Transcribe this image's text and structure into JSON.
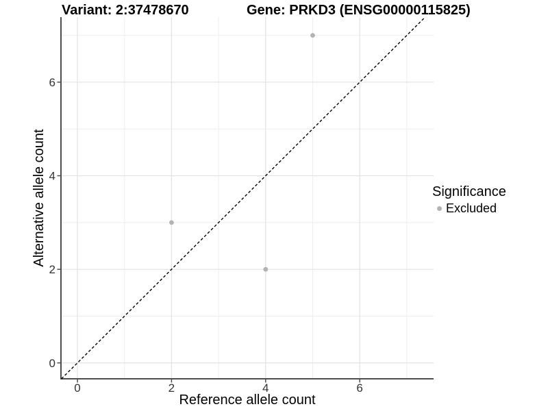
{
  "titles": {
    "variant": "Variant: 2:37478670",
    "gene": "Gene: PRKD3 (ENSG00000115825)"
  },
  "chart_data": {
    "type": "scatter",
    "title_left": "Variant: 2:37478670",
    "title_right": "Gene: PRKD3 (ENSG00000115825)",
    "xlabel": "Reference allele count",
    "ylabel": "Alternative allele count",
    "series": [
      {
        "name": "Excluded",
        "color": "#b3b3b3",
        "points": [
          [
            2,
            3
          ],
          [
            4,
            2
          ],
          [
            5,
            7
          ]
        ]
      }
    ],
    "identity_line": {
      "slope": 1,
      "intercept": 0,
      "style": "dashed",
      "color": "#000000"
    },
    "x_ticks": [
      0,
      2,
      4,
      6
    ],
    "y_ticks": [
      0,
      2,
      4,
      6
    ],
    "x_minor_ticks": [
      1,
      3,
      5,
      7
    ],
    "y_minor_ticks": [
      1,
      3,
      5,
      7
    ],
    "xlim": [
      -0.35,
      7.57
    ],
    "ylim": [
      -0.34,
      7.39
    ],
    "grid": true,
    "legend": {
      "title": "Significance",
      "position": "right",
      "items": [
        {
          "label": "Excluded",
          "color": "#b3b3b3"
        }
      ]
    },
    "colors": {
      "major_grid": "#e2e2e2",
      "minor_grid": "#eeeeee",
      "axis_line": "#4d4d4d",
      "tick_mark": "#4d4d4d",
      "tick_label": "#333333",
      "point": "#b3b3b3"
    }
  }
}
